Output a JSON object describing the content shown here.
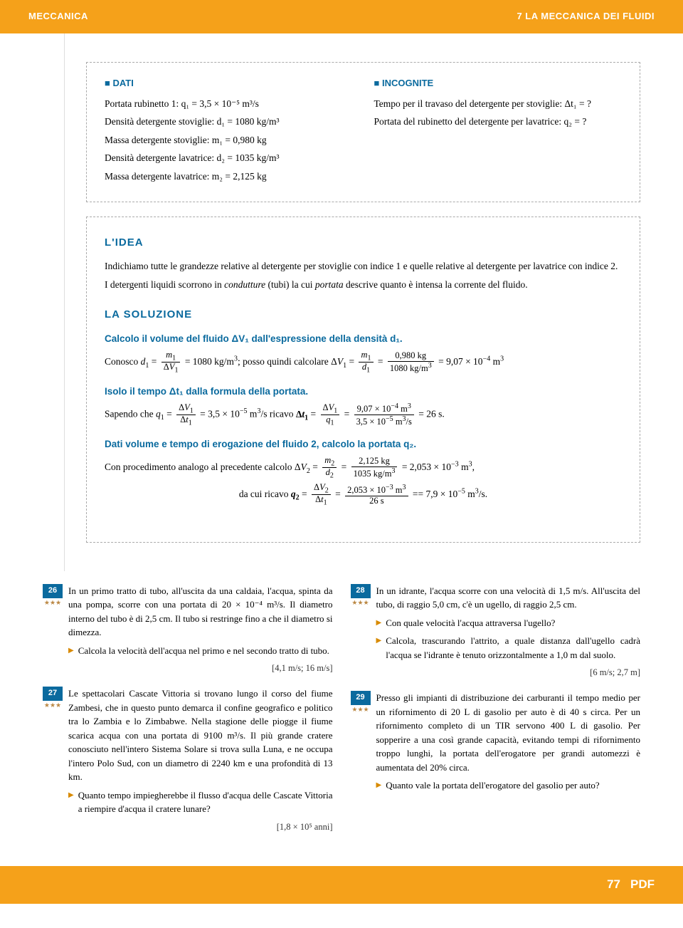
{
  "header": {
    "left": "MECCANICA",
    "right": "7 LA MECCANICA DEI FLUIDI"
  },
  "dati": {
    "title": "DATI",
    "l1": "Portata rubinetto 1: q₁ = 3,5 × 10⁻⁵ m³/s",
    "l2": "Densità detergente stoviglie: d₁ = 1080 kg/m³",
    "l3": "Massa detergente stoviglie: m₁ = 0,980 kg",
    "l4": "Densità detergente lavatrice: d₂ = 1035 kg/m³",
    "l5": "Massa detergente lavatrice: m₂ = 2,125 kg"
  },
  "incog": {
    "title": "INCOGNITE",
    "l1": "Tempo per il travaso del detergente per stoviglie: Δt₁ = ?",
    "l2": "Portata del rubinetto del detergente per lavatrice: q₂ = ?"
  },
  "idea": {
    "title": "L'IDEA",
    "p1": "Indichiamo tutte le grandezze relative al detergente per stoviglie con indice 1 e quelle relative al detergente per lavatrice con indice 2.",
    "p2": "I detergenti liquidi scorrono in condutture (tubi) la cui portata descrive quanto è intensa la corrente del fluido."
  },
  "sol": {
    "title": "LA SOLUZIONE",
    "h1": "Calcolo il volume del fluido ΔV₁ dall'espressione della densità d₁.",
    "h2": "Isolo il tempo Δt₁ dalla formula della portata.",
    "h3": "Dati volume e tempo di erogazione del fluido 2, calcolo la portata q₂."
  },
  "ex": {
    "26": {
      "n": "26",
      "s": "★★★",
      "t": "In un primo tratto di tubo, all'uscita da una caldaia, l'acqua, spinta da una pompa, scorre con una portata di 20 × 10⁻⁴ m³/s. Il diametro interno del tubo è di 2,5 cm. Il tubo si restringe fino a che il diametro si dimezza.",
      "b1": "Calcola la velocità dell'acqua nel primo e nel secondo tratto di tubo.",
      "a": "[4,1 m/s; 16 m/s]"
    },
    "27": {
      "n": "27",
      "s": "★★★",
      "t": "Le spettacolari Cascate Vittoria si trovano lungo il corso del fiume Zambesi, che in questo punto demarca il confine geografico e politico tra lo Zambia e lo Zimbabwe. Nella stagione delle piogge il fiume scarica acqua con una portata di 9100 m³/s. Il più grande cratere conosciuto nell'intero Sistema Solare si trova sulla Luna, e ne occupa l'intero Polo Sud, con un diametro di 2240 km e una profondità di 13 km.",
      "b1": "Quanto tempo impiegherebbe il flusso d'acqua delle Cascate Vittoria a riempire d'acqua il cratere lunare?",
      "a": "[1,8 × 10⁵ anni]"
    },
    "28": {
      "n": "28",
      "s": "★★★",
      "t": "In un idrante, l'acqua scorre con una velocità di 1,5 m/s. All'uscita del tubo, di raggio 5,0 cm, c'è un ugello, di raggio 2,5 cm.",
      "b1": "Con quale velocità l'acqua attraversa l'ugello?",
      "b2": "Calcola, trascurando l'attrito, a quale distanza dall'ugello cadrà l'acqua se l'idrante è tenuto orizzontalmente a 1,0 m dal suolo.",
      "a": "[6 m/s; 2,7 m]"
    },
    "29": {
      "n": "29",
      "s": "★★★",
      "t": "Presso gli impianti di distribuzione dei carburanti il tempo medio per un rifornimento di 20 L di gasolio per auto è di 40 s circa. Per un rifornimento completo di un TIR servono 400 L di gasolio. Per sopperire a una così grande capacità, evitando tempi di rifornimento troppo lunghi, la portata dell'erogatore per grandi automezzi è aumentata del 20% circa.",
      "b1": "Quanto vale la portata dell'erogatore del gasolio per auto?"
    }
  },
  "footer": {
    "page": "77",
    "label": "PDF"
  }
}
